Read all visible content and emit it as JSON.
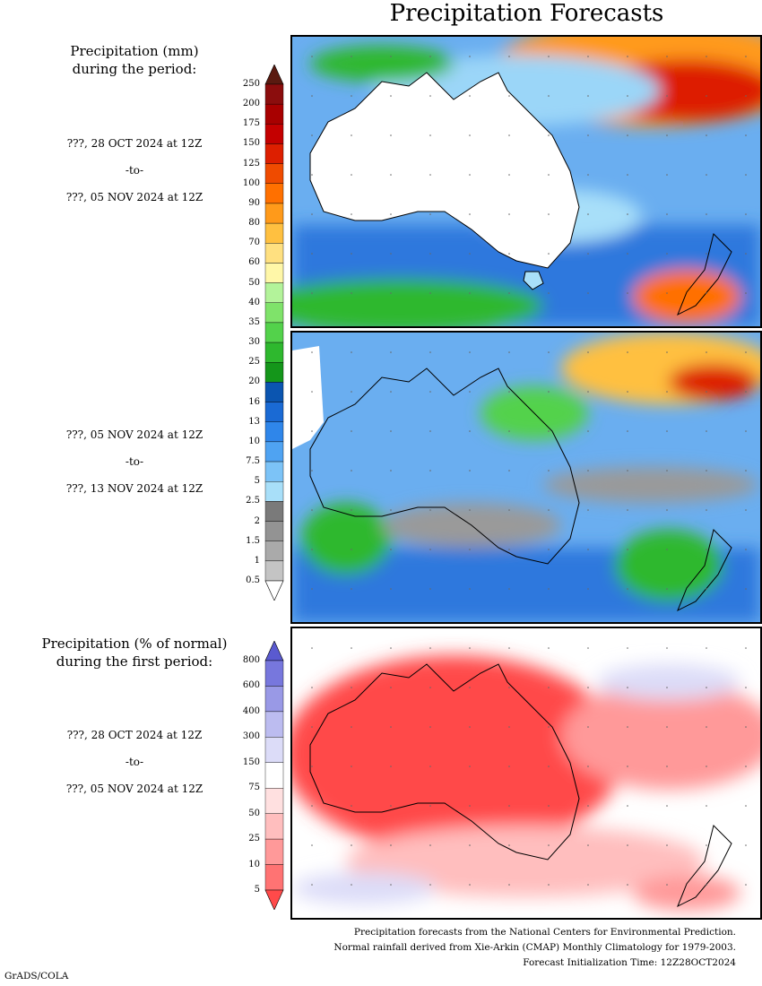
{
  "title": "Precipitation Forecasts",
  "sections": [
    {
      "label_lines": [
        "Precipitation (mm)",
        "during the period:"
      ],
      "dates": [
        {
          "start": "???, 28 OCT 2024 at 12Z",
          "sep": "-to-",
          "end": "???, 05 NOV 2024 at 12Z"
        },
        {
          "start": "???, 05 NOV 2024 at 12Z",
          "sep": "-to-",
          "end": "???, 13 NOV 2024 at 12Z"
        }
      ]
    },
    {
      "label_lines": [
        "Precipitation (% of normal)",
        "during the first period:"
      ],
      "dates": [
        {
          "start": "???, 28 OCT 2024 at 12Z",
          "sep": "-to-",
          "end": "???, 05 NOV 2024 at 12Z"
        }
      ]
    }
  ],
  "colorbar_mm": {
    "labels": [
      "250",
      "200",
      "175",
      "150",
      "125",
      "100",
      "90",
      "80",
      "70",
      "60",
      "50",
      "40",
      "35",
      "30",
      "25",
      "20",
      "16",
      "13",
      "10",
      "7.5",
      "5",
      "2.5",
      "2",
      "1.5",
      "1",
      "0.5"
    ],
    "colors": [
      "#5a1a10",
      "#8b0d0d",
      "#a80000",
      "#c40000",
      "#dd1f00",
      "#ef4b00",
      "#ff7000",
      "#ff9a1a",
      "#ffc040",
      "#ffe080",
      "#fff7a8",
      "#b3f39a",
      "#7fe36a",
      "#53d24b",
      "#2eb82e",
      "#14961a",
      "#0b55b0",
      "#1a6ad4",
      "#2f86ea",
      "#4fa3f2",
      "#7cc3f7",
      "#a8dff9",
      "#7a7a7a",
      "#939393",
      "#aaaaaa",
      "#c4c4c4",
      "#ffffff"
    ]
  },
  "colorbar_pct": {
    "labels": [
      "800",
      "600",
      "400",
      "300",
      "150",
      "75",
      "50",
      "25",
      "10",
      "5"
    ],
    "colors": [
      "#5a5ad0",
      "#7777dd",
      "#9999e6",
      "#bcbcf0",
      "#dcdcf8",
      "#ffffff",
      "#ffe0e0",
      "#ffbebe",
      "#ff9999",
      "#ff7373",
      "#ff4a4a"
    ]
  },
  "footer": [
    "Precipitation forecasts from the National Centers for Environmental Prediction.",
    "Normal rainfall derived from Xie-Arkin (CMAP) Monthly Climatology for 1979-2003.",
    "Forecast Initialization Time: 12Z28OCT2024"
  ],
  "credit": "GrADS/COLA"
}
